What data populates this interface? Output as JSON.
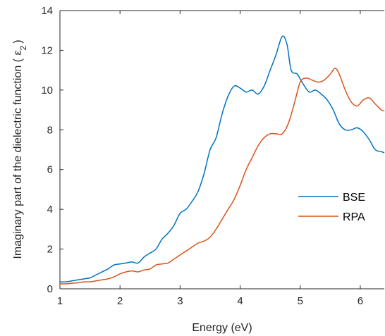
{
  "chart_data": {
    "type": "line",
    "xlabel": "Energy (eV)",
    "ylabel": "Imaginary part of the dielectric function ( ε",
    "ylabel_subscript": "2",
    "ylabel_close": ")",
    "xlim": [
      1,
      6.4
    ],
    "ylim": [
      0,
      14
    ],
    "xticks": [
      1,
      2,
      3,
      4,
      5,
      6
    ],
    "yticks": [
      0,
      2,
      4,
      6,
      8,
      10,
      12,
      14
    ],
    "grid": false,
    "legend_position": "right",
    "series": [
      {
        "name": "BSE",
        "color": "#0072bd",
        "x": [
          1.0,
          1.1,
          1.2,
          1.3,
          1.4,
          1.5,
          1.6,
          1.7,
          1.8,
          1.9,
          2.0,
          2.1,
          2.2,
          2.3,
          2.4,
          2.5,
          2.6,
          2.7,
          2.8,
          2.9,
          3.0,
          3.1,
          3.2,
          3.3,
          3.4,
          3.5,
          3.6,
          3.7,
          3.8,
          3.9,
          4.0,
          4.1,
          4.2,
          4.3,
          4.4,
          4.5,
          4.6,
          4.7,
          4.78,
          4.85,
          4.95,
          5.05,
          5.15,
          5.25,
          5.35,
          5.45,
          5.55,
          5.65,
          5.75,
          5.85,
          5.95,
          6.05,
          6.15,
          6.25,
          6.35,
          6.4
        ],
        "y": [
          0.35,
          0.35,
          0.4,
          0.45,
          0.5,
          0.55,
          0.7,
          0.85,
          1.0,
          1.2,
          1.25,
          1.3,
          1.35,
          1.3,
          1.6,
          1.8,
          2.0,
          2.5,
          2.8,
          3.2,
          3.8,
          4.0,
          4.4,
          4.9,
          5.8,
          7.0,
          7.6,
          8.8,
          9.7,
          10.2,
          10.1,
          9.9,
          10.0,
          9.8,
          10.2,
          11.0,
          11.8,
          12.7,
          12.3,
          11.0,
          10.8,
          10.3,
          9.9,
          10.0,
          9.8,
          9.5,
          9.0,
          8.3,
          8.0,
          8.0,
          8.1,
          7.9,
          7.5,
          7.0,
          6.9,
          6.85
        ]
      },
      {
        "name": "RPA",
        "color": "#d95319",
        "x": [
          1.0,
          1.1,
          1.2,
          1.3,
          1.4,
          1.5,
          1.6,
          1.7,
          1.8,
          1.9,
          2.0,
          2.1,
          2.2,
          2.3,
          2.4,
          2.5,
          2.6,
          2.7,
          2.8,
          2.9,
          3.0,
          3.1,
          3.2,
          3.3,
          3.4,
          3.5,
          3.6,
          3.7,
          3.8,
          3.9,
          4.0,
          4.1,
          4.2,
          4.3,
          4.4,
          4.5,
          4.6,
          4.7,
          4.8,
          4.9,
          5.0,
          5.1,
          5.2,
          5.3,
          5.4,
          5.5,
          5.58,
          5.65,
          5.75,
          5.85,
          5.95,
          6.05,
          6.15,
          6.25,
          6.35,
          6.4
        ],
        "y": [
          0.25,
          0.25,
          0.28,
          0.3,
          0.35,
          0.35,
          0.4,
          0.45,
          0.5,
          0.6,
          0.75,
          0.85,
          0.9,
          0.85,
          0.95,
          1.0,
          1.2,
          1.25,
          1.3,
          1.5,
          1.7,
          1.9,
          2.1,
          2.3,
          2.4,
          2.6,
          3.0,
          3.5,
          4.0,
          4.5,
          5.2,
          6.0,
          6.6,
          7.2,
          7.6,
          7.8,
          7.8,
          7.8,
          8.3,
          9.3,
          10.4,
          10.6,
          10.5,
          10.4,
          10.5,
          10.8,
          11.1,
          10.8,
          10.0,
          9.4,
          9.2,
          9.5,
          9.6,
          9.3,
          9.0,
          8.95
        ]
      }
    ]
  }
}
